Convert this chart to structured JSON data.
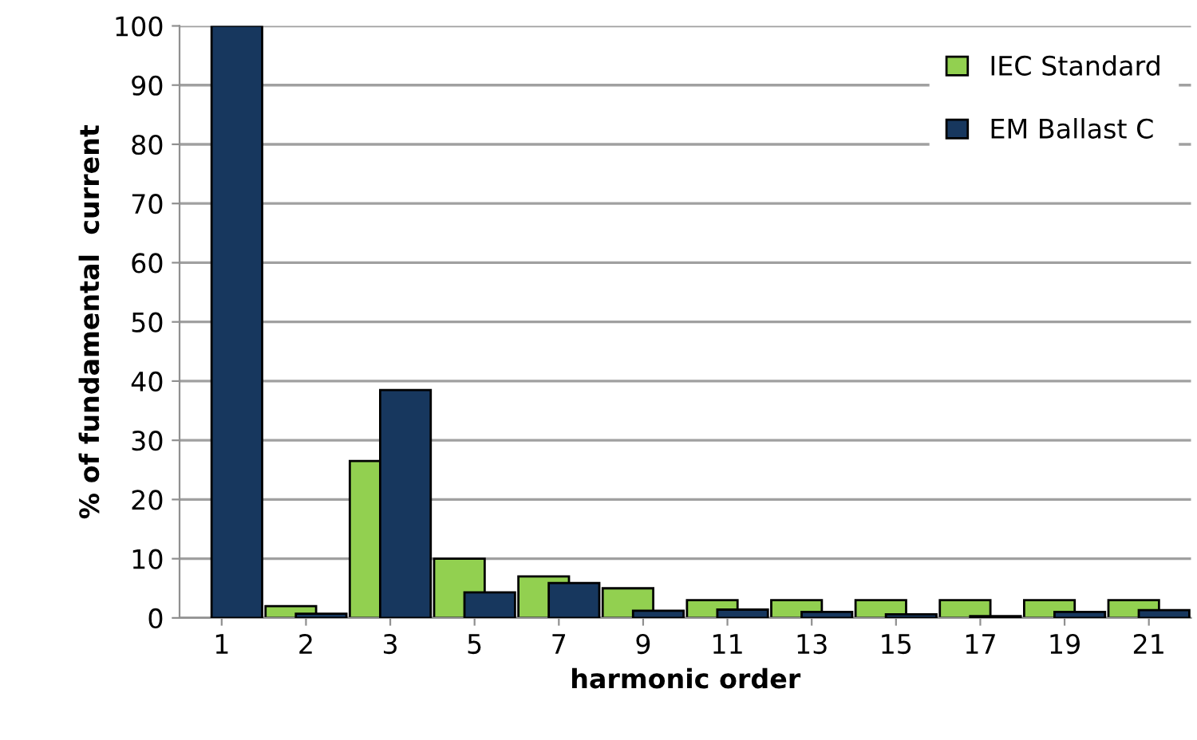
{
  "chart_data": {
    "type": "bar",
    "xlabel": "harmonic order",
    "ylabel": "% of fundamental  current",
    "categories": [
      "1",
      "2",
      "3",
      "5",
      "7",
      "9",
      "11",
      "13",
      "15",
      "17",
      "19",
      "21"
    ],
    "series": [
      {
        "name": "IEC Standard",
        "color": "#92d050",
        "values": [
          null,
          2,
          26.5,
          10,
          7,
          5,
          3,
          3,
          3,
          3,
          3,
          3
        ]
      },
      {
        "name": "EM Ballast C",
        "color": "#17375e",
        "values": [
          100,
          0.7,
          38.5,
          4.3,
          5.9,
          1.2,
          1.4,
          1,
          0.6,
          0.3,
          1,
          1.3
        ]
      }
    ],
    "ylim": [
      0,
      100
    ],
    "yticks": [
      0,
      10,
      20,
      30,
      40,
      50,
      60,
      70,
      80,
      90,
      100
    ],
    "grid": "y",
    "legend": "top right"
  }
}
